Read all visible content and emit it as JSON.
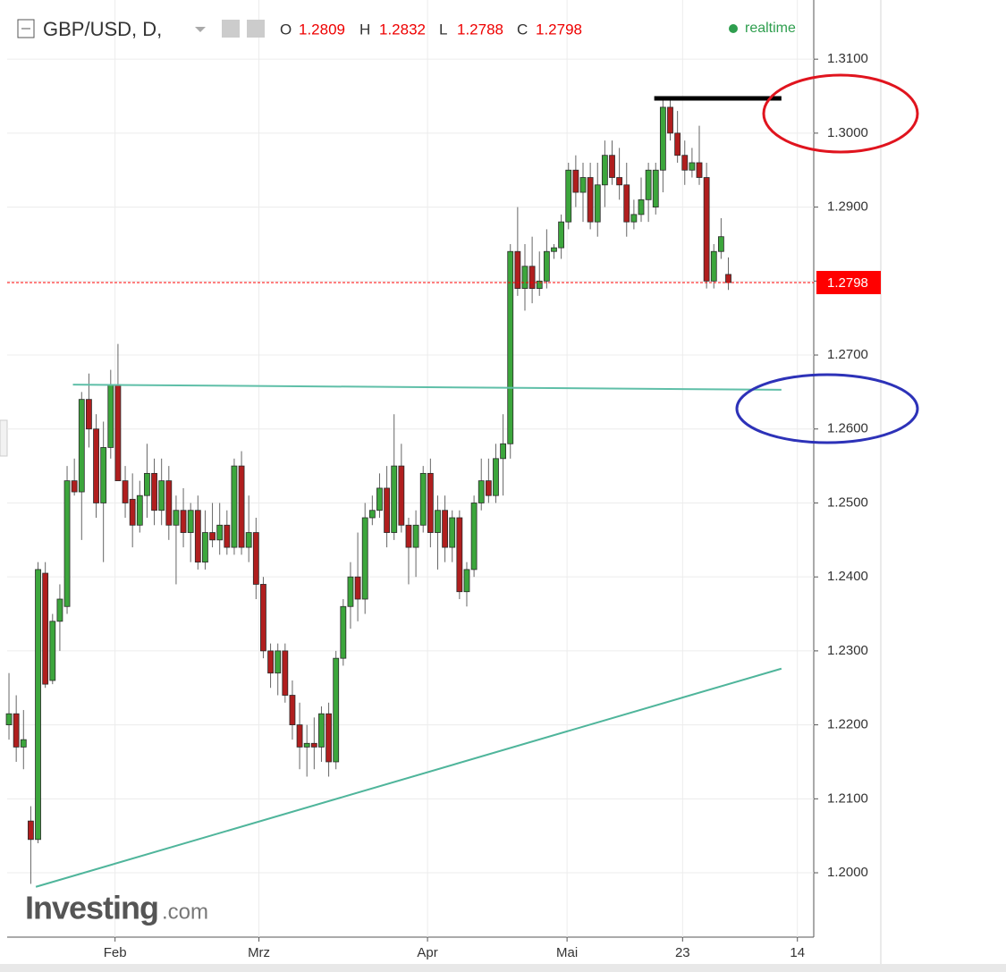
{
  "chart_data": {
    "type": "candlestick",
    "title": "GBP/USD, D,",
    "status": "realtime",
    "watermark": {
      "brand": "Investing",
      "suffix": ".com"
    },
    "header_labels": [
      "O",
      "H",
      "L",
      "C"
    ],
    "up_color": "#3ca63c",
    "down_color": "#b01e1e",
    "last_price_color": "#ff0000",
    "xlim": [
      -0.25,
      110.75
    ],
    "xticks": [
      {
        "value": 14.6,
        "label": "Feb"
      },
      {
        "value": 34.4,
        "label": "Mrz"
      },
      {
        "value": 57.6,
        "label": "Apr"
      },
      {
        "value": 76.8,
        "label": "Mai"
      },
      {
        "value": 92.7,
        "label": "23"
      },
      {
        "value": 108.5,
        "label": "14"
      }
    ],
    "ylim": [
      1.1913,
      1.318
    ],
    "yticks": [
      {
        "value": 1.2,
        "label": "1.2000"
      },
      {
        "value": 1.21,
        "label": "1.2100"
      },
      {
        "value": 1.22,
        "label": "1.2200"
      },
      {
        "value": 1.23,
        "label": "1.2300"
      },
      {
        "value": 1.24,
        "label": "1.2400"
      },
      {
        "value": 1.25,
        "label": "1.2500"
      },
      {
        "value": 1.26,
        "label": "1.2600"
      },
      {
        "value": 1.27,
        "label": "1.2700"
      },
      {
        "value": 1.28,
        "label": "1.2800"
      },
      {
        "value": 1.29,
        "label": "1.2900"
      },
      {
        "value": 1.3,
        "label": "1.3000"
      },
      {
        "value": 1.31,
        "label": "1.3100"
      }
    ],
    "grid": true,
    "open": [
      1.22,
      1.2215,
      1.217,
      1.207,
      1.2045,
      1.2405,
      1.226,
      1.234,
      1.236,
      1.253,
      1.2515,
      1.264,
      1.26,
      1.25,
      1.2575,
      1.266,
      1.253,
      1.2505,
      1.247,
      1.251,
      1.254,
      1.249,
      1.253,
      1.247,
      1.249,
      1.246,
      1.249,
      1.242,
      1.246,
      1.245,
      1.247,
      1.244,
      1.255,
      1.244,
      1.246,
      1.239,
      1.23,
      1.227,
      1.23,
      1.224,
      1.22,
      1.217,
      1.2175,
      1.217,
      1.2215,
      1.215,
      1.229,
      1.236,
      1.24,
      1.237,
      1.248,
      1.249,
      1.252,
      1.246,
      1.255,
      1.247,
      1.244,
      1.247,
      1.254,
      1.246,
      1.249,
      1.244,
      1.248,
      1.238,
      1.241,
      1.25,
      1.253,
      1.251,
      1.256,
      1.258,
      1.284,
      1.279,
      1.282,
      1.279,
      1.28,
      1.284,
      1.2845,
      1.288,
      1.295,
      1.292,
      1.294,
      1.288,
      1.293,
      1.297,
      1.294,
      1.293,
      1.288,
      1.289,
      1.291,
      1.29,
      1.295,
      1.3035,
      1.3,
      1.297,
      1.295,
      1.296,
      1.294,
      1.28,
      1.284,
      1.2809
    ],
    "high": [
      1.227,
      1.224,
      1.222,
      1.209,
      1.242,
      1.242,
      1.235,
      1.239,
      1.255,
      1.256,
      1.265,
      1.2675,
      1.262,
      1.261,
      1.268,
      1.2715,
      1.255,
      1.254,
      1.253,
      1.258,
      1.256,
      1.256,
      1.255,
      1.251,
      1.252,
      1.25,
      1.251,
      1.249,
      1.25,
      1.25,
      1.249,
      1.256,
      1.257,
      1.251,
      1.248,
      1.24,
      1.231,
      1.231,
      1.231,
      1.226,
      1.223,
      1.22,
      1.221,
      1.2225,
      1.223,
      1.23,
      1.237,
      1.242,
      1.246,
      1.25,
      1.251,
      1.254,
      1.255,
      1.262,
      1.258,
      1.248,
      1.249,
      1.255,
      1.256,
      1.251,
      1.251,
      1.249,
      1.249,
      1.242,
      1.251,
      1.256,
      1.256,
      1.258,
      1.262,
      1.285,
      1.29,
      1.285,
      1.286,
      1.284,
      1.287,
      1.285,
      1.289,
      1.296,
      1.297,
      1.296,
      1.296,
      1.296,
      1.299,
      1.299,
      1.298,
      1.296,
      1.291,
      1.294,
      1.296,
      1.296,
      1.3045,
      1.3048,
      1.303,
      1.299,
      1.298,
      1.301,
      1.296,
      1.285,
      1.2885,
      1.2832
    ],
    "low": [
      1.218,
      1.215,
      1.214,
      1.1985,
      1.204,
      1.225,
      1.2255,
      1.23,
      1.235,
      1.251,
      1.245,
      1.2575,
      1.248,
      1.242,
      1.256,
      1.254,
      1.248,
      1.244,
      1.246,
      1.248,
      1.247,
      1.247,
      1.245,
      1.239,
      1.244,
      1.242,
      1.241,
      1.241,
      1.244,
      1.243,
      1.243,
      1.243,
      1.243,
      1.242,
      1.237,
      1.229,
      1.225,
      1.224,
      1.223,
      1.218,
      1.214,
      1.213,
      1.214,
      1.215,
      1.213,
      1.214,
      1.228,
      1.233,
      1.234,
      1.235,
      1.247,
      1.248,
      1.244,
      1.245,
      1.246,
      1.239,
      1.24,
      1.246,
      1.244,
      1.241,
      1.242,
      1.242,
      1.237,
      1.236,
      1.24,
      1.249,
      1.25,
      1.25,
      1.251,
      1.256,
      1.278,
      1.276,
      1.277,
      1.278,
      1.279,
      1.283,
      1.283,
      1.287,
      1.29,
      1.288,
      1.287,
      1.286,
      1.29,
      1.293,
      1.291,
      1.286,
      1.287,
      1.288,
      1.288,
      1.289,
      1.292,
      1.299,
      1.296,
      1.293,
      1.294,
      1.293,
      1.279,
      1.279,
      1.283,
      1.2788
    ],
    "close": [
      1.2215,
      1.217,
      1.218,
      1.2045,
      1.241,
      1.2255,
      1.234,
      1.237,
      1.253,
      1.2515,
      1.264,
      1.26,
      1.25,
      1.2575,
      1.266,
      1.253,
      1.25,
      1.247,
      1.251,
      1.254,
      1.249,
      1.253,
      1.247,
      1.249,
      1.246,
      1.249,
      1.242,
      1.246,
      1.245,
      1.247,
      1.244,
      1.255,
      1.244,
      1.246,
      1.239,
      1.23,
      1.227,
      1.23,
      1.224,
      1.22,
      1.217,
      1.2175,
      1.217,
      1.2215,
      1.215,
      1.229,
      1.236,
      1.24,
      1.237,
      1.248,
      1.249,
      1.252,
      1.246,
      1.255,
      1.247,
      1.244,
      1.247,
      1.254,
      1.246,
      1.249,
      1.244,
      1.248,
      1.238,
      1.241,
      1.25,
      1.253,
      1.251,
      1.256,
      1.258,
      1.284,
      1.279,
      1.282,
      1.279,
      1.28,
      1.284,
      1.2845,
      1.288,
      1.295,
      1.292,
      1.294,
      1.288,
      1.293,
      1.297,
      1.294,
      1.293,
      1.288,
      1.289,
      1.291,
      1.295,
      1.295,
      1.3035,
      1.3,
      1.297,
      1.295,
      1.296,
      1.294,
      1.28,
      1.284,
      1.286,
      1.2798
    ],
    "lines": [
      {
        "color": "#5fbfa8",
        "x": [
          8.8,
          106.3
        ],
        "y": [
          1.266,
          1.2653
        ]
      },
      {
        "color": "#4fb59b",
        "x": [
          3.7,
          106.3
        ],
        "y": [
          1.1981,
          1.2276
        ]
      },
      {
        "color": "#000000",
        "x": [
          88.8,
          106.3
        ],
        "y": [
          1.3047,
          1.3047
        ]
      }
    ]
  }
}
